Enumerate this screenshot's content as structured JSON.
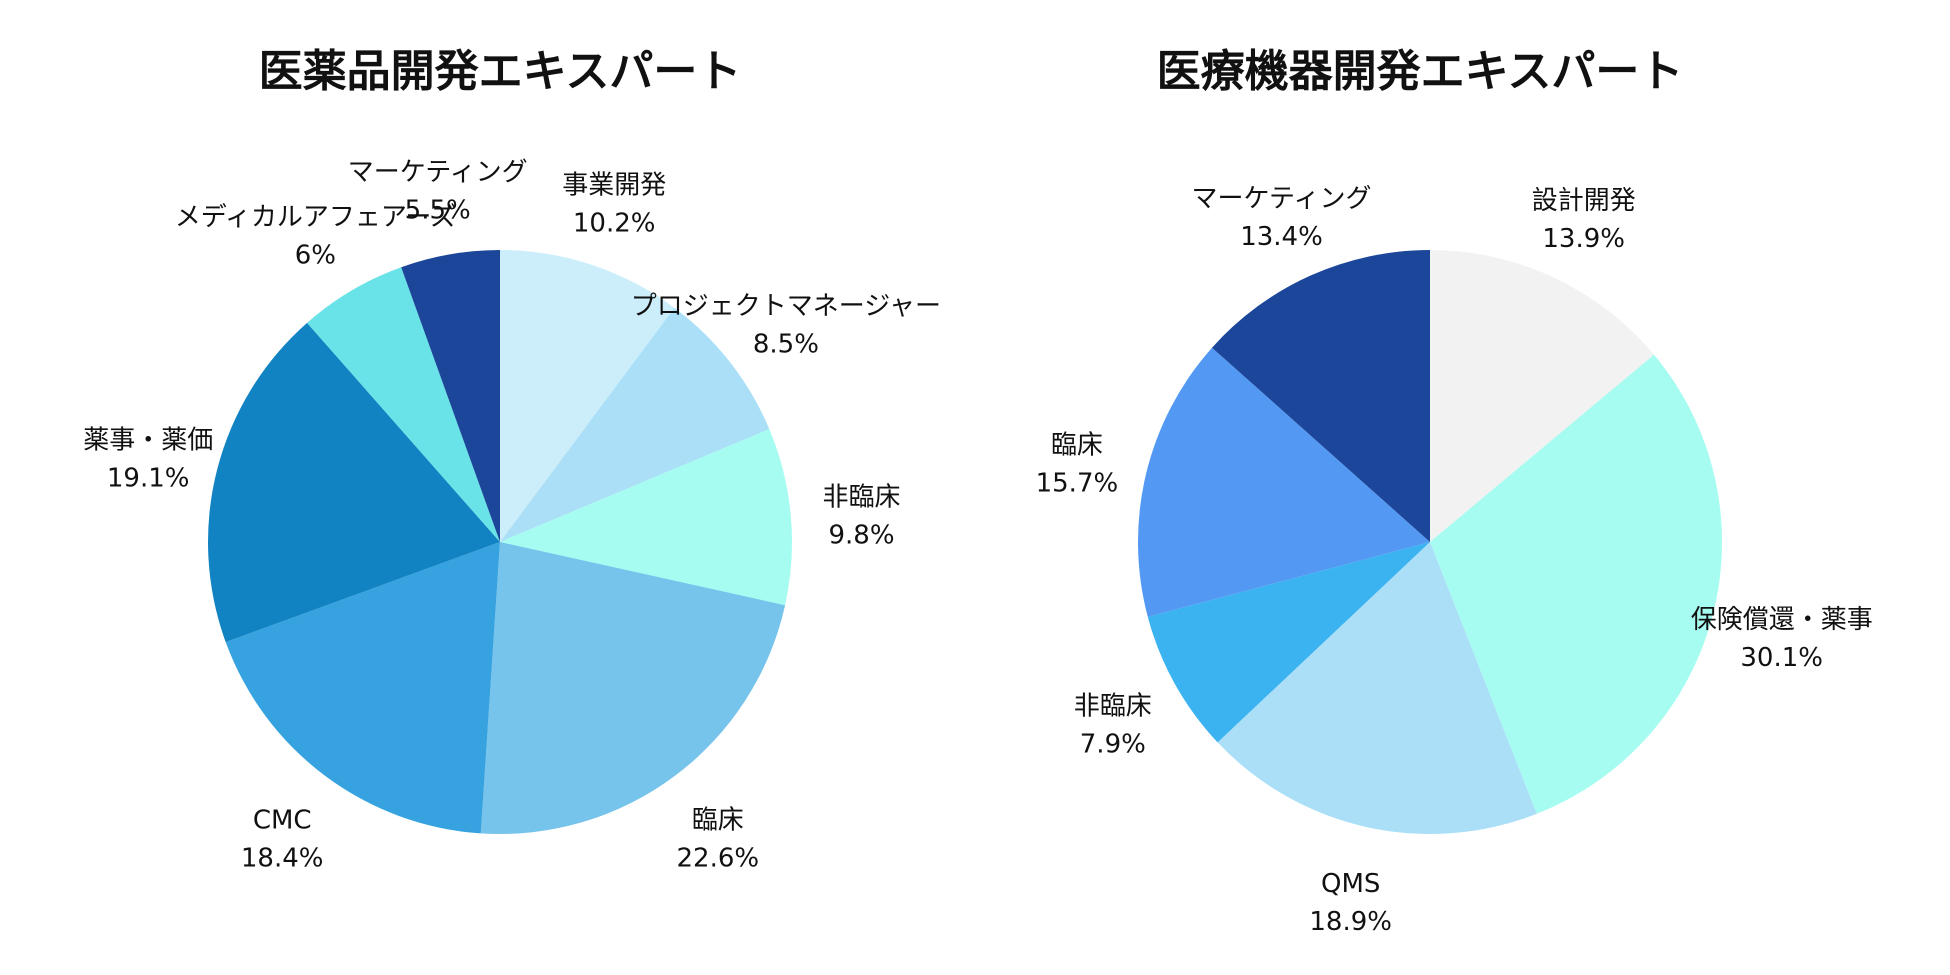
{
  "chart_data": [
    {
      "type": "pie",
      "title": "医薬品開発エキスパート",
      "start": "12 o'clock",
      "direction": "clockwise",
      "slices": [
        {
          "label": "事業開発",
          "value": 10.2,
          "value_label": "10.2%",
          "color": "#cbeefa"
        },
        {
          "label": "プロジェクトマネージャー",
          "value": 8.5,
          "value_label": "8.5%",
          "color": "#aadff7"
        },
        {
          "label": "非臨床",
          "value": 9.8,
          "value_label": "9.8%",
          "color": "#a6fcf0"
        },
        {
          "label": "臨床",
          "value": 22.6,
          "value_label": "22.6%",
          "color": "#76c3ec"
        },
        {
          "label": "CMC",
          "value": 18.4,
          "value_label": "18.4%",
          "color": "#36a2df"
        },
        {
          "label": "薬事・薬価",
          "value": 19.1,
          "value_label": "19.1%",
          "color": "#1283c2"
        },
        {
          "label": "メディカルアフェアーズ",
          "value": 6,
          "value_label": "6%",
          "color": "#69e3e7"
        },
        {
          "label": "マーケティング",
          "value": 5.5,
          "value_label": "5.5%",
          "color": "#1c4699"
        }
      ]
    },
    {
      "type": "pie",
      "title": "医療機器開発エキスパート",
      "start": "12 o'clock",
      "direction": "clockwise",
      "slices": [
        {
          "label": "設計開発",
          "value": 13.9,
          "value_label": "13.9%",
          "color": "#f2f2f2"
        },
        {
          "label": "保険償還・薬事",
          "value": 30.1,
          "value_label": "30.1%",
          "color": "#a6fcf0"
        },
        {
          "label": "QMS",
          "value": 18.9,
          "value_label": "18.9%",
          "color": "#aadff7"
        },
        {
          "label": "非臨床",
          "value": 7.9,
          "value_label": "7.9%",
          "color": "#3bb3f0"
        },
        {
          "label": "臨床",
          "value": 15.7,
          "value_label": "15.7%",
          "color": "#5399f3"
        },
        {
          "label": "マーケティング",
          "value": 13.4,
          "value_label": "13.4%",
          "color": "#1c4699"
        }
      ]
    }
  ]
}
